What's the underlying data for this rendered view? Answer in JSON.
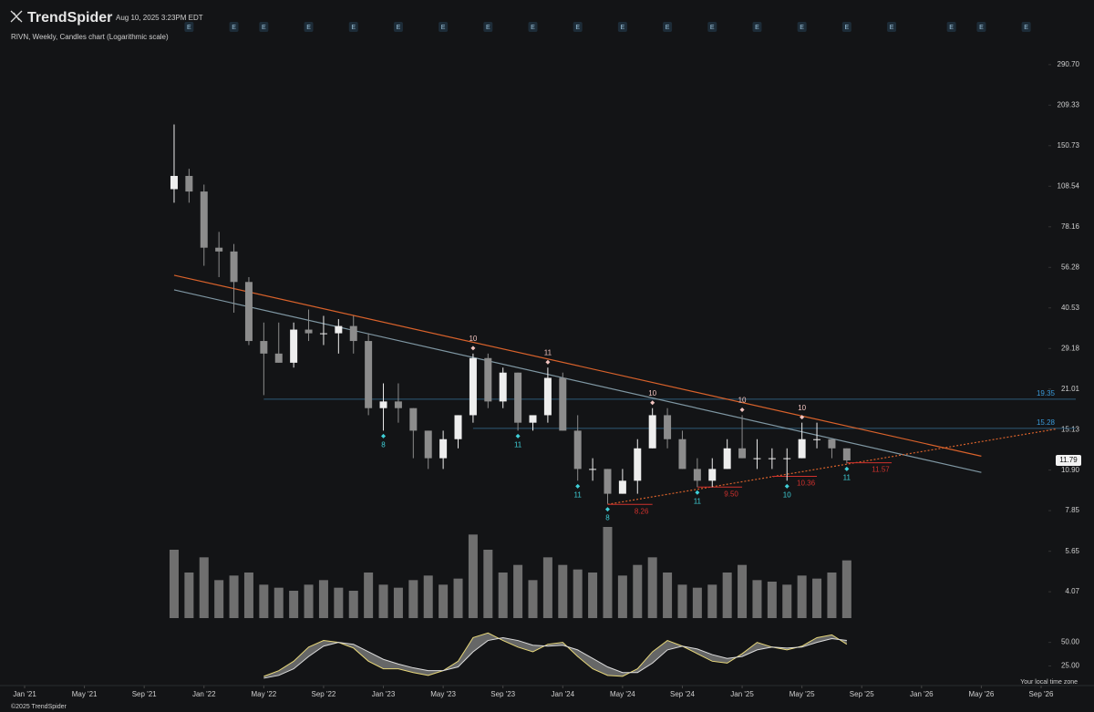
{
  "header": {
    "brand": "TrendSpider",
    "timestamp": "Aug 10, 2025 3:23PM EDT",
    "subtitle": "RIVN, Weekly, Candles chart (Logarithmic scale)"
  },
  "footer": {
    "copyright": "©2025 TrendSpider",
    "timezone": "Your local time zone"
  },
  "chart_data": [
    {
      "type": "candlestick",
      "log_scale": true,
      "grid": false,
      "up_color": "#eeeeee",
      "down_color": "#8c8c8c",
      "volume_color": "#6f6f6f",
      "x": [
        "2021-11",
        "2021-12",
        "2022-01",
        "2022-02",
        "2022-03",
        "2022-04",
        "2022-05",
        "2022-06",
        "2022-07",
        "2022-08",
        "2022-09",
        "2022-10",
        "2022-11",
        "2022-12",
        "2023-01",
        "2023-02",
        "2023-03",
        "2023-04",
        "2023-05",
        "2023-06",
        "2023-07",
        "2023-08",
        "2023-09",
        "2023-10",
        "2023-11",
        "2023-12",
        "2024-01",
        "2024-02",
        "2024-03",
        "2024-04",
        "2024-05",
        "2024-06",
        "2024-07",
        "2024-08",
        "2024-09",
        "2024-10",
        "2024-11",
        "2024-12",
        "2025-01",
        "2025-02",
        "2025-03",
        "2025-04",
        "2025-05",
        "2025-06",
        "2025-07",
        "2025-08"
      ],
      "open": [
        106,
        118,
        104,
        66,
        64,
        50,
        31,
        28,
        26,
        34,
        33,
        33,
        35,
        31,
        18,
        19,
        18,
        15,
        12,
        14,
        17,
        27,
        19,
        24,
        16,
        17,
        23,
        15,
        11,
        11,
        9,
        10,
        13,
        17,
        14,
        11,
        10,
        11,
        13,
        12,
        12,
        12,
        12,
        14,
        14,
        13
      ],
      "high": [
        179,
        125,
        110,
        75,
        68,
        52,
        36,
        36,
        36,
        40,
        38,
        37,
        38,
        33,
        22,
        22,
        18,
        15,
        15,
        17,
        28,
        28,
        25,
        24,
        17,
        25,
        24,
        17,
        12,
        11,
        11,
        14,
        18,
        18,
        15,
        12,
        12,
        14,
        17,
        14,
        13,
        13,
        16,
        16,
        14,
        13
      ],
      "low": [
        95,
        95,
        57,
        52,
        39,
        30,
        20,
        26,
        25,
        31,
        30,
        28,
        28,
        17,
        15,
        16,
        12,
        11,
        11,
        13,
        16,
        18,
        18,
        15,
        15,
        16,
        15,
        10,
        10,
        8.3,
        9,
        9,
        13,
        13,
        11,
        9.5,
        9.5,
        11,
        12,
        11,
        11,
        10,
        12,
        13,
        12,
        11.5
      ],
      "close": [
        118,
        104,
        66,
        64,
        50,
        31,
        28,
        26,
        34,
        33,
        33,
        35,
        31,
        18,
        19,
        18,
        15,
        12,
        14,
        17,
        27,
        19,
        24,
        16,
        17,
        23,
        15,
        11,
        11,
        9,
        10,
        13,
        17,
        14,
        11,
        10,
        11,
        13,
        12,
        12,
        12,
        12,
        14,
        14,
        13,
        11.79
      ],
      "volume": [
        45,
        30,
        40,
        25,
        28,
        30,
        22,
        20,
        18,
        22,
        25,
        20,
        18,
        30,
        22,
        20,
        25,
        28,
        22,
        26,
        55,
        45,
        30,
        35,
        25,
        40,
        35,
        32,
        30,
        60,
        28,
        35,
        40,
        30,
        22,
        20,
        22,
        30,
        35,
        25,
        24,
        22,
        28,
        26,
        30,
        38
      ],
      "xlim": [
        "2021-01",
        "2026-09"
      ],
      "xticks": [
        {
          "value": "2021-01",
          "label": "Jan '21"
        },
        {
          "value": "2021-05",
          "label": "May '21"
        },
        {
          "value": "2021-09",
          "label": "Sep '21"
        },
        {
          "value": "2022-01",
          "label": "Jan '22"
        },
        {
          "value": "2022-05",
          "label": "May '22"
        },
        {
          "value": "2022-09",
          "label": "Sep '22"
        },
        {
          "value": "2023-01",
          "label": "Jan '23"
        },
        {
          "value": "2023-05",
          "label": "May '23"
        },
        {
          "value": "2023-09",
          "label": "Sep '23"
        },
        {
          "value": "2024-01",
          "label": "Jan '24"
        },
        {
          "value": "2024-05",
          "label": "May '24"
        },
        {
          "value": "2024-09",
          "label": "Sep '24"
        },
        {
          "value": "2025-01",
          "label": "Jan '25"
        },
        {
          "value": "2025-05",
          "label": "May '25"
        },
        {
          "value": "2025-09",
          "label": "Sep '25"
        },
        {
          "value": "2026-01",
          "label": "Jan '26"
        },
        {
          "value": "2026-05",
          "label": "May '26"
        },
        {
          "value": "2026-09",
          "label": "Sep '26"
        }
      ],
      "ylim": [
        3.24,
        365
      ],
      "yticks": [
        {
          "value": 290.7,
          "label": "290.70"
        },
        209.33,
        150.73,
        108.54,
        78.16,
        56.28,
        40.53,
        29.18,
        21.01,
        15.13,
        {
          "value": 10.9,
          "label": "10.90"
        },
        7.85,
        5.65,
        4.07
      ],
      "trendlines": [
        {
          "color": "#d9622b",
          "style": "solid",
          "from": [
            "2021-11",
            52.8
          ],
          "to": [
            "2026-05",
            12.2
          ]
        },
        {
          "color": "#7f97a3",
          "style": "solid",
          "from": [
            "2021-11",
            46.9
          ],
          "to": [
            "2026-05",
            10.7
          ]
        },
        {
          "color": "#d9622b",
          "style": "dotted",
          "from": [
            "2024-04",
            8.26
          ],
          "to": [
            "2026-10",
            15.2
          ]
        }
      ],
      "levels": [
        {
          "value": 19.35,
          "from": "2022-05",
          "color": "#2e5a78",
          "label_color": "#3a9ad9"
        },
        {
          "value": 15.28,
          "from": "2023-07",
          "color": "#2e5a78",
          "label_color": "#3a9ad9"
        }
      ],
      "supports": [
        {
          "value": 8.26,
          "from": "2024-04",
          "to": "2024-07"
        },
        {
          "value": 9.5,
          "label": "9.50",
          "from": "2024-10",
          "to": "2025-01"
        },
        {
          "value": 10.36,
          "from": "2025-03",
          "to": "2025-06"
        },
        {
          "value": 11.57,
          "from": "2025-08",
          "to": "2025-11"
        }
      ],
      "support_color": "#d0312d",
      "markers": [
        {
          "date": "2023-07",
          "label": 10,
          "position": "top"
        },
        {
          "date": "2023-12",
          "label": 11,
          "position": "top"
        },
        {
          "date": "2024-07",
          "label": 10,
          "position": "top"
        },
        {
          "date": "2025-01",
          "label": 10,
          "position": "top"
        },
        {
          "date": "2025-05",
          "label": 10,
          "position": "top"
        },
        {
          "date": "2023-01",
          "label": 8,
          "position": "bottom"
        },
        {
          "date": "2023-10",
          "label": 11,
          "position": "bottom"
        },
        {
          "date": "2024-02",
          "label": 11,
          "position": "bottom"
        },
        {
          "date": "2024-04",
          "label": 8,
          "position": "bottom"
        },
        {
          "date": "2024-10",
          "label": 11,
          "position": "bottom"
        },
        {
          "date": "2025-04",
          "label": 10,
          "position": "bottom"
        },
        {
          "date": "2025-08",
          "label": 11,
          "position": "bottom"
        }
      ],
      "top_marker_color": "#f2c4c0",
      "bottom_marker_color": "#3fd0d8",
      "earnings": {
        "label": "E",
        "dates": [
          "2021-12",
          "2022-03",
          "2022-05",
          "2022-08",
          "2022-11",
          "2023-02",
          "2023-05",
          "2023-08",
          "2023-11",
          "2024-02",
          "2024-05",
          "2024-08",
          "2024-11",
          "2025-02",
          "2025-05",
          "2025-08",
          "2025-11",
          "2026-03",
          "2026-05",
          "2026-08"
        ]
      }
    },
    {
      "type": "oscillator",
      "x": [
        "2022-05",
        "2022-06",
        "2022-07",
        "2022-08",
        "2022-09",
        "2022-10",
        "2022-11",
        "2022-12",
        "2023-01",
        "2023-02",
        "2023-03",
        "2023-04",
        "2023-05",
        "2023-06",
        "2023-07",
        "2023-08",
        "2023-09",
        "2023-10",
        "2023-11",
        "2023-12",
        "2024-01",
        "2024-02",
        "2024-03",
        "2024-04",
        "2024-05",
        "2024-06",
        "2024-07",
        "2024-08",
        "2024-09",
        "2024-10",
        "2024-11",
        "2024-12",
        "2025-01",
        "2025-02",
        "2025-03",
        "2025-04",
        "2025-05",
        "2025-06",
        "2025-07",
        "2025-08"
      ],
      "series": [
        {
          "color": "#e8d87a",
          "values": [
            14,
            20,
            30,
            45,
            52,
            50,
            44,
            30,
            22,
            22,
            18,
            15,
            20,
            30,
            55,
            60,
            52,
            45,
            40,
            48,
            50,
            35,
            22,
            15,
            14,
            22,
            40,
            52,
            46,
            38,
            30,
            28,
            38,
            50,
            45,
            42,
            46,
            55,
            58,
            48
          ]
        },
        {
          "color": "#dddddd",
          "values": [
            12,
            15,
            22,
            35,
            46,
            50,
            48,
            40,
            32,
            27,
            23,
            20,
            20,
            24,
            40,
            52,
            55,
            52,
            47,
            46,
            47,
            42,
            33,
            24,
            18,
            18,
            28,
            42,
            46,
            43,
            37,
            33,
            35,
            42,
            45,
            44,
            45,
            50,
            54,
            52
          ]
        }
      ],
      "cloud_color": "#8a8a8a",
      "ylim": [
        10,
        68
      ],
      "yticks": [
        {
          "value": 50,
          "label": "50.00"
        },
        {
          "value": 25,
          "label": "25.00"
        }
      ]
    }
  ]
}
